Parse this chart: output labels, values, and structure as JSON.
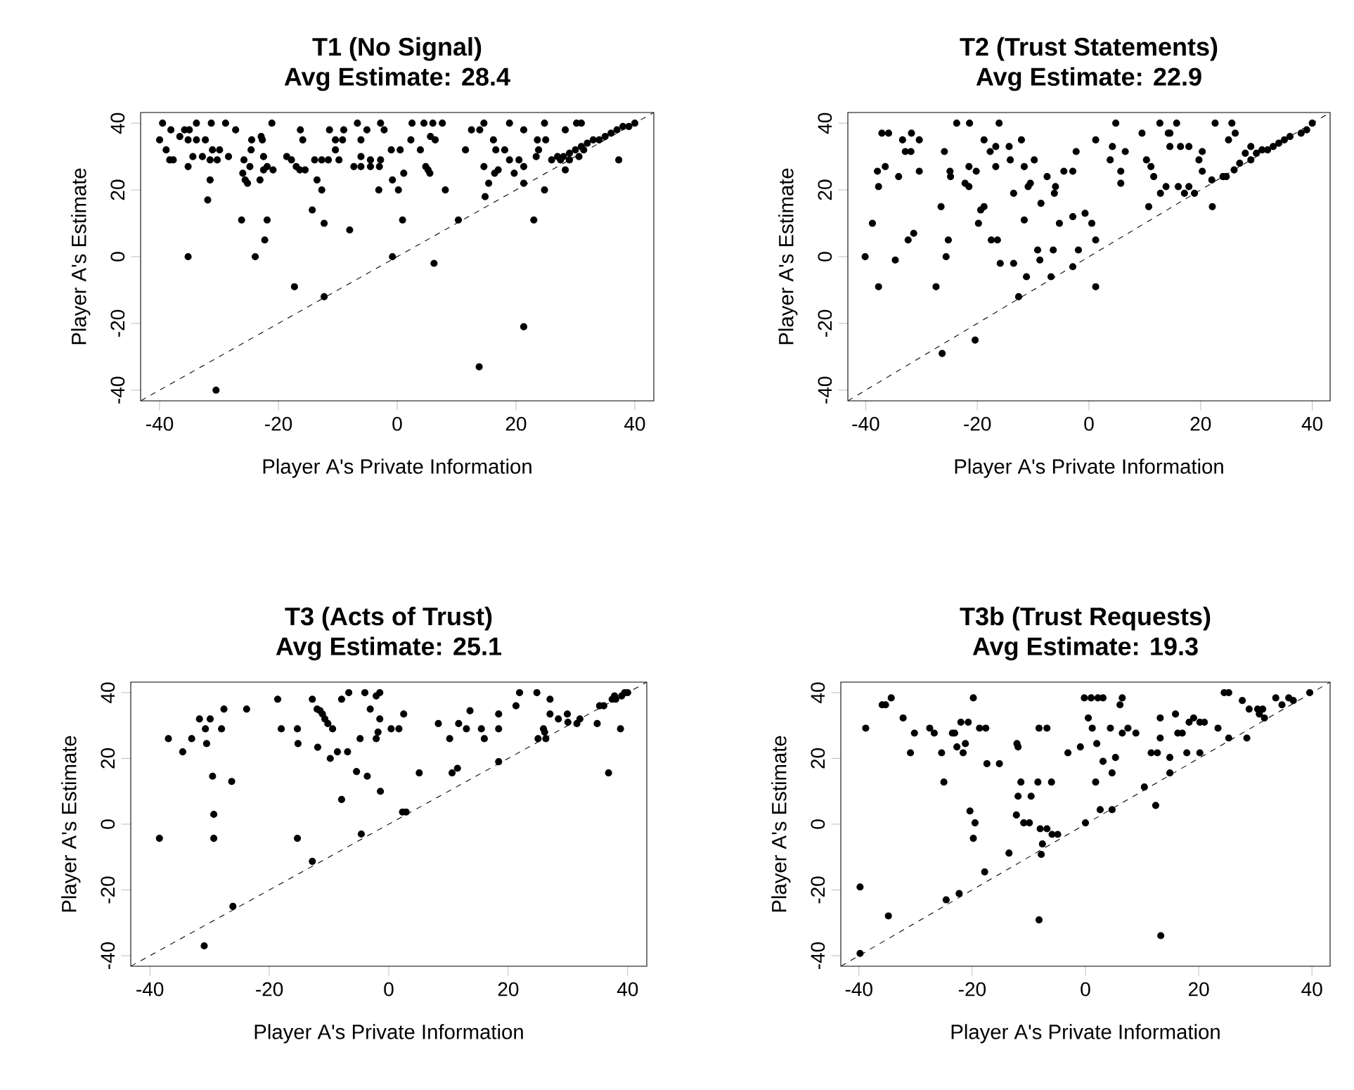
{
  "chart_data": [
    {
      "type": "scatter",
      "title": "T1 (No Signal)",
      "subtitle": "Avg Estimate: 28.4",
      "xlabel": "Player A's Private Information",
      "ylabel": "Player A's Estimate",
      "xlim": [
        -43.2,
        43.2
      ],
      "ylim": [
        -43.2,
        43.2
      ],
      "xticks": [
        -40,
        -20,
        0,
        20,
        40
      ],
      "yticks": [
        -40,
        -20,
        0,
        20,
        40
      ],
      "marker": "circle",
      "series": [
        {
          "color": "#000000",
          "x": [
            -39.5,
            -33.8,
            -31.3,
            -28.9,
            -21.1,
            -6.7,
            -2.8,
            2.5,
            4.5,
            6,
            7.6,
            14.6,
            18.9,
            24.8,
            30.2,
            31,
            -38.1,
            -35.8,
            -35,
            -27.2,
            -16.3,
            -11.4,
            -9,
            -5.1,
            -2.2,
            12.5,
            13.9,
            21.3,
            28.3,
            -36.6,
            -22.9,
            5.6,
            -40,
            -35.2,
            -33.8,
            -32.3,
            -24.5,
            -22.7,
            -15.9,
            -10.4,
            -9.2,
            -6.1,
            2.3,
            6.4,
            16.2,
            23.6,
            25,
            -38.9,
            -31.1,
            -29.9,
            -24.6,
            -10.4,
            -1,
            0.5,
            3.9,
            11.5,
            16.6,
            18.1,
            23.8,
            31.4,
            -34.4,
            -32.8,
            -28.4,
            -22.5,
            -18.6,
            -6.1,
            23.4,
            30.6,
            -38.3,
            -37.7,
            -31.5,
            -30.3,
            -25.8,
            -17.8,
            -13.9,
            -12.7,
            -11.6,
            -9.8,
            -4.5,
            -2.8,
            18.9,
            20.5,
            27.5,
            29,
            -35.2,
            -24.8,
            -21.9,
            -17,
            -7.3,
            -6.1,
            -4.5,
            -3,
            4.8,
            14.6,
            21.3,
            -22.5,
            -20.9,
            -16.4,
            -15.5,
            5.2,
            17,
            28.3,
            -26,
            1.1,
            5.5,
            16.4,
            19.7,
            -31.5,
            -25.6,
            -23.1,
            -13.5,
            -0.8,
            -25.2,
            15.4,
            21.3,
            -12.7,
            -3.1,
            0.2,
            8.1,
            24.8,
            14.8,
            -31.9,
            -14.3,
            -26.2,
            -21.9,
            0.9,
            10.3,
            23,
            -12.3,
            -8,
            -22.3,
            -35.2,
            -23.9,
            -0.8,
            6.2,
            -17.3,
            -12.3,
            21.3,
            13.8,
            -30.5,
            40,
            39,
            38,
            37,
            36,
            35,
            34,
            33,
            32,
            31,
            30,
            29,
            28,
            27,
            26,
            37.3
          ],
          "values": [
            40,
            40,
            40,
            40,
            40,
            40,
            40,
            40,
            40,
            40,
            40,
            40,
            40,
            40,
            40,
            40,
            38,
            38,
            38,
            38,
            38,
            38,
            38,
            38,
            38,
            38,
            38,
            38,
            38,
            36,
            36,
            36,
            35,
            35,
            35,
            35,
            35,
            35,
            35,
            35,
            35,
            35,
            35,
            35,
            35,
            35,
            35,
            32,
            32,
            32,
            32,
            32,
            32,
            32,
            32,
            32,
            32,
            32,
            32,
            32,
            30,
            30,
            30,
            30,
            30,
            30,
            30,
            30,
            29,
            29,
            29,
            29,
            29,
            29,
            29,
            29,
            29,
            29,
            29,
            29,
            29,
            29,
            29,
            29,
            27,
            27,
            27,
            27,
            27,
            27,
            27,
            27,
            27,
            27,
            27,
            26,
            26,
            26,
            26,
            26,
            26,
            26,
            25,
            25,
            25,
            25,
            25,
            23,
            23,
            23,
            23,
            23,
            22,
            22,
            22,
            20,
            20,
            20,
            20,
            20,
            18,
            17,
            14,
            11,
            11,
            11,
            11,
            11,
            10,
            8,
            5,
            0,
            0,
            0,
            -2,
            -9,
            -12,
            -21,
            -33,
            -40,
            40,
            39,
            39,
            38,
            37,
            36,
            35,
            35,
            34,
            33,
            32,
            31,
            30,
            30,
            29,
            29
          ]
        },
        {
          "type": "line",
          "color": "#000000",
          "line_style": "dashed",
          "marker": "none",
          "x": [
            -43.2,
            43.2
          ],
          "values": [
            -43.2,
            43.2
          ]
        }
      ]
    },
    {
      "type": "scatter",
      "title": "T2 (Trust Statements)",
      "subtitle": "Avg Estimate: 22.9",
      "xlabel": "Player A's Private Information",
      "ylabel": "Player A's Estimate",
      "xlim": [
        -43.2,
        43.2
      ],
      "ylim": [
        -43.2,
        43.2
      ],
      "xticks": [
        -40,
        -20,
        0,
        20,
        40
      ],
      "yticks": [
        -40,
        -20,
        0,
        20,
        40
      ],
      "marker": "circle",
      "series": [
        {
          "color": "#000000",
          "x": [
            -23.7,
            -21.4,
            -16.1,
            4.8,
            12.7,
            15.7,
            22.6,
            25.6,
            -37.1,
            -35.9,
            -31.8,
            9.5,
            14.2,
            14.5,
            26.2,
            -33.4,
            -30.4,
            -18.8,
            -12.1,
            1.2,
            25,
            -16.7,
            -14.3,
            4.2,
            14.5,
            16.4,
            17.9,
            -32.9,
            -31.9,
            -25.9,
            -17.7,
            -2.3,
            6.5,
            20.3,
            -14.1,
            -9.8,
            3.8,
            10.3,
            19.7,
            -36.5,
            -21.5,
            -16.7,
            -11.6,
            11.1,
            -37.9,
            -30.4,
            -24.9,
            -20.2,
            -4.5,
            -2.9,
            5.7,
            20.3,
            -34.1,
            -24.8,
            -7.5,
            11.6,
            24.6,
            -22.2,
            -10.5,
            5.7,
            -37.7,
            -21.5,
            -10.9,
            -6,
            13.8,
            16,
            17.9,
            -13.5,
            -6.2,
            12.8,
            17.1,
            18.9,
            -8.6,
            -26.5,
            -18.8,
            10.7,
            22.1,
            -19.4,
            -0.7,
            -2.9,
            -11.6,
            -38.8,
            -19.8,
            -5.3,
            0.5,
            -31.4,
            -32.4,
            -25.2,
            -17.5,
            -16.4,
            1.2,
            -9.2,
            -6.4,
            -1.9,
            -40.1,
            -25.6,
            -34.7,
            -8.8,
            -15.9,
            -13.5,
            -2.9,
            -11.2,
            -6.8,
            -37.7,
            -27.4,
            1.2,
            -12.6,
            -20.4,
            -26.3,
            22,
            24,
            26,
            27,
            29,
            29,
            30,
            31,
            32,
            33,
            34,
            35,
            36,
            38,
            39,
            40,
            28
          ],
          "values": [
            40,
            40,
            40,
            40,
            40,
            40,
            40,
            40,
            37,
            37,
            37,
            37,
            37,
            37,
            37,
            35,
            35,
            35,
            35,
            35,
            35,
            33,
            33,
            33,
            33,
            33,
            33,
            31.5,
            31.5,
            31.5,
            31.5,
            31.5,
            31.5,
            31.5,
            29,
            29,
            29,
            29,
            29,
            27,
            27,
            27,
            27,
            27,
            25.6,
            25.6,
            25.6,
            25.6,
            25.6,
            25.6,
            25.6,
            25.6,
            24,
            24,
            24,
            24,
            24,
            22,
            22,
            22,
            21,
            21,
            21,
            21,
            21,
            21,
            21,
            19,
            19,
            19,
            19,
            19,
            16,
            15,
            15,
            15,
            15,
            14,
            13,
            12,
            11,
            10,
            10,
            10,
            10,
            7,
            5,
            5,
            5,
            5,
            5,
            2,
            2,
            2,
            0,
            0,
            -1,
            -1,
            -2,
            -2,
            -3,
            -6,
            -6,
            -9,
            -9,
            -9,
            -12,
            -25,
            -29,
            23,
            24,
            26,
            28,
            29,
            33,
            31,
            32,
            32,
            33,
            34,
            35,
            36,
            37,
            38,
            40,
            31
          ]
        },
        {
          "type": "line",
          "color": "#000000",
          "line_style": "dashed",
          "marker": "none",
          "x": [
            -43.2,
            43.2
          ],
          "values": [
            -43.2,
            43.2
          ]
        }
      ]
    },
    {
      "type": "scatter",
      "title": "T3 (Acts of Trust)",
      "subtitle": "Avg Estimate: 25.1",
      "xlabel": "Player A's Private Information",
      "ylabel": "Player A's Estimate",
      "xlim": [
        -43.2,
        43.2
      ],
      "ylim": [
        -43.2,
        43.2
      ],
      "xticks": [
        -40,
        -20,
        0,
        20,
        40
      ],
      "yticks": [
        -40,
        -20,
        0,
        20,
        40
      ],
      "marker": "circle",
      "series": [
        {
          "color": "#000000",
          "x": [
            -6.7,
            -4,
            -1.5,
            21.9,
            24.8,
            39.5,
            -2.1,
            37.8,
            -18.6,
            -12.8,
            -7.9,
            27,
            37.4,
            21.3,
            35.3,
            -27.6,
            -23.8,
            -3.1,
            -12,
            13.6,
            -11.5,
            -11.1,
            2.5,
            18.4,
            27,
            29.9,
            -31.7,
            -29.9,
            -10.7,
            -1.5,
            28.4,
            -10.2,
            8.3,
            11.7,
            31.5,
            34.9,
            -30.7,
            -28,
            -18,
            -15.3,
            -9.4,
            0.4,
            1.7,
            13,
            15.5,
            18.4,
            25.9,
            38.8,
            26.1,
            -1.8,
            -36.9,
            -33,
            -4.8,
            -2.1,
            10.2,
            16,
            25,
            26.3,
            -30.5,
            -15.2,
            -11.9,
            -34.5,
            -8.6,
            -6.9,
            -9.8,
            18.4,
            11.5,
            -5.4,
            5.1,
            10.6,
            36.8,
            -29.5,
            -3.6,
            -26.3,
            -1.4,
            -7.9,
            2.3,
            2.9,
            -29.3,
            -4.6,
            -38.4,
            -29.3,
            -15.3,
            -12.8,
            -26.1,
            -30.9,
            30,
            32,
            36,
            38,
            39,
            40
          ],
          "values": [
            40,
            40,
            40,
            40,
            40,
            40,
            39,
            39,
            38,
            38,
            38,
            38,
            38,
            36,
            36,
            35,
            35,
            35,
            35,
            34.5,
            34.5,
            33.5,
            33.5,
            33.5,
            33.5,
            33.5,
            32,
            32,
            32,
            32,
            32,
            30.6,
            30.6,
            30.6,
            30.6,
            30.6,
            29,
            29,
            29,
            29,
            29,
            29,
            29,
            29,
            29,
            29,
            29,
            29,
            28,
            28,
            26,
            26,
            26,
            26,
            26,
            26,
            26,
            26,
            24.5,
            24.5,
            23.4,
            22,
            22,
            22,
            20,
            19,
            17,
            16,
            15.6,
            15.6,
            15.6,
            14.6,
            14.6,
            13,
            10,
            7.5,
            3.7,
            3.7,
            3,
            -3,
            -4.3,
            -4.3,
            -4.3,
            -11.3,
            -25,
            -37,
            31,
            32,
            36,
            38,
            39,
            40
          ]
        },
        {
          "type": "line",
          "color": "#000000",
          "line_style": "dashed",
          "marker": "none",
          "x": [
            -43.2,
            43.2
          ],
          "values": [
            -43.2,
            43.2
          ]
        }
      ]
    },
    {
      "type": "scatter",
      "title": "T3b (Trust Requests)",
      "subtitle": "Avg Estimate: 19.3",
      "xlabel": "Player A's Private Information",
      "ylabel": "Player A's Estimate",
      "xlim": [
        -43.2,
        43.2
      ],
      "ylim": [
        -43.2,
        43.2
      ],
      "xticks": [
        -40,
        -20,
        0,
        20,
        40
      ],
      "yticks": [
        -40,
        -20,
        0,
        20,
        40
      ],
      "marker": "circle",
      "series": [
        {
          "color": "#000000",
          "x": [
            24.5,
            25.3,
            39.6,
            -34.3,
            -19.8,
            -0.2,
            1,
            2.2,
            3.1,
            6.5,
            35.9,
            33.6,
            27.7,
            36.7,
            -35.9,
            -35.3,
            6.1,
            34.7,
            28.9,
            30.4,
            31.3,
            15.9,
            30.7,
            -32.2,
            0.5,
            13.2,
            19.1,
            31.6,
            -22,
            -20.7,
            18.3,
            21,
            20.2,
            -38.8,
            -27.5,
            -18.7,
            -17.6,
            -8.2,
            -6.8,
            1.2,
            4.4,
            7.5,
            23.4,
            -30.2,
            -26.7,
            -23.5,
            -23.1,
            6.5,
            8.9,
            16.3,
            17.1,
            13.2,
            25.3,
            28.5,
            -12.1,
            2,
            -21.2,
            -22.7,
            -11.9,
            -0.9,
            -30.9,
            -25.4,
            -21.6,
            -3.1,
            11.6,
            12.7,
            17.9,
            20.2,
            5.3,
            14.9,
            3.1,
            -17.4,
            -15.2,
            4.7,
            14.9,
            -8.4,
            -6,
            1.8,
            -25,
            -11.4,
            10.4,
            -11.9,
            -9.6,
            12.4,
            2.6,
            4.7,
            -20.4,
            -12.2,
            -19.5,
            -10.9,
            -9.9,
            0,
            -8,
            -6.8,
            -5.9,
            -4.9,
            -19.8,
            -7.6,
            -13.5,
            -7.8,
            -17.8,
            -39.8,
            -22.3,
            -24.6,
            -34.8,
            -8.2,
            13.3,
            -39.8
          ],
          "values": [
            40,
            40,
            40,
            38.4,
            38.4,
            38.4,
            38.4,
            38.4,
            38.4,
            38.4,
            38.4,
            38.4,
            37.6,
            37.6,
            36.3,
            36.3,
            36.3,
            36.3,
            35,
            35,
            35,
            33.5,
            33.5,
            32.3,
            32.3,
            32.3,
            32.3,
            32.3,
            31,
            31,
            31,
            31,
            31,
            29.2,
            29.2,
            29.2,
            29.2,
            29.2,
            29.2,
            29.2,
            29.2,
            29.2,
            29.2,
            27.7,
            27.7,
            27.7,
            27.7,
            27.7,
            27.7,
            27.7,
            27.7,
            26.2,
            26.2,
            26.2,
            24.5,
            24.5,
            24.5,
            23.5,
            23.5,
            23.5,
            21.7,
            21.7,
            21.7,
            21.7,
            21.7,
            21.7,
            21.7,
            21.7,
            20.3,
            20.3,
            19.1,
            18.4,
            18.4,
            15.6,
            15.6,
            12.8,
            12.8,
            12.8,
            12.8,
            12.8,
            11.3,
            8.5,
            8.5,
            5.7,
            4.4,
            4.4,
            4,
            2.8,
            0.4,
            0.4,
            0.4,
            0.4,
            -1.4,
            -1.4,
            -3.1,
            -3.1,
            -4.3,
            -6,
            -8.8,
            -9.2,
            -14.5,
            -19.1,
            -21.1,
            -23,
            -27.9,
            -29.1,
            -33.9,
            -39.3
          ]
        },
        {
          "type": "line",
          "color": "#000000",
          "line_style": "dashed",
          "marker": "none",
          "x": [
            -43.2,
            43.2
          ],
          "values": [
            -43.2,
            43.2
          ]
        }
      ]
    }
  ]
}
